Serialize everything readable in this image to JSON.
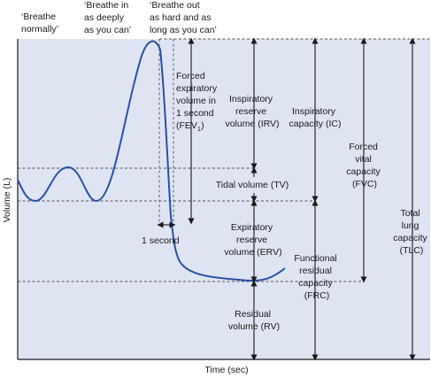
{
  "phases": {
    "normal": [
      "‘Breathe",
      "normally’"
    ],
    "deep": [
      "‘Breathe in",
      "as deeply",
      "as you can’"
    ],
    "forced": [
      "‘Breathe out",
      "as hard and as",
      "long as you can’"
    ]
  },
  "axes": {
    "y": "Volume (L)",
    "x": "Time (sec)"
  },
  "fev1": {
    "lines": [
      "Forced",
      "expiratory",
      "volume in",
      "1 second"
    ],
    "abbr": "(FEV",
    "sub": "1",
    "close": ")"
  },
  "one_second": "1 second",
  "irv": [
    "Inspiratory",
    "reserve",
    "volume (IRV)"
  ],
  "tv": "Tidal volume (TV)",
  "erv": [
    "Expiratory",
    "reserve",
    "volume (ERV)"
  ],
  "rv": [
    "Residual",
    "volume (RV)"
  ],
  "ic": [
    "Inspiratory",
    "capacity (IC)"
  ],
  "frc": [
    "Functional",
    "residual",
    "capacity",
    "(FRC)"
  ],
  "fvc": [
    "Forced",
    "vital",
    "capacity",
    "(FVC)"
  ],
  "tlc": [
    "Total",
    "lung",
    "capacity",
    "(TLC)"
  ],
  "colors": {
    "plot_bg": "#dfe4f3",
    "curve": "#2a4fa8",
    "arrow": "#1a1a1a",
    "dash": "#555555"
  }
}
